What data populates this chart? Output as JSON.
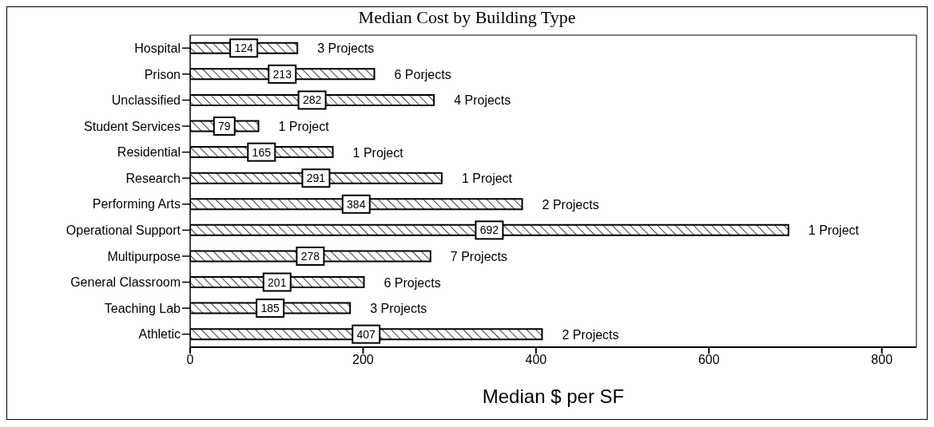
{
  "chart_data": {
    "type": "bar",
    "orientation": "horizontal",
    "title": "Median Cost by Building Type",
    "xlabel": "Median $ per SF",
    "categories": [
      "Hospital",
      "Prison",
      "Unclassified",
      "Student Services",
      "Residential",
      "Research",
      "Performing Arts",
      "Operational Support",
      "Multipurpose",
      "General Classroom",
      "Teaching Lab",
      "Athletic"
    ],
    "values": [
      124,
      213,
      282,
      79,
      165,
      291,
      384,
      692,
      278,
      201,
      185,
      407
    ],
    "color": "#000000",
    "data_labels": true,
    "xlim": [
      0,
      840
    ],
    "xticks": [
      0,
      200,
      400,
      600,
      800
    ],
    "grid": false,
    "legend": false,
    "annotations": [
      {
        "text": "3 Projects",
        "x": 124,
        "y": "Hospital"
      },
      {
        "text": "6 Porjects",
        "x": 213,
        "y": "Prison"
      },
      {
        "text": "4 Projects",
        "x": 282,
        "y": "Unclassified"
      },
      {
        "text": "1 Project",
        "x": 79,
        "y": "Student Services"
      },
      {
        "text": "1 Project",
        "x": 165,
        "y": "Residential"
      },
      {
        "text": "1 Project",
        "x": 291,
        "y": "Research"
      },
      {
        "text": "2 Projects",
        "x": 384,
        "y": "Performing Arts"
      },
      {
        "text": "1 Project",
        "x": 692,
        "y": "Operational Support"
      },
      {
        "text": "7 Projects",
        "x": 278,
        "y": "Multipurpose"
      },
      {
        "text": "6 Projects",
        "x": 201,
        "y": "General Classroom"
      },
      {
        "text": "3 Projects",
        "x": 185,
        "y": "Teaching Lab"
      },
      {
        "text": "2 Projects",
        "x": 407,
        "y": "Athletic"
      }
    ]
  }
}
